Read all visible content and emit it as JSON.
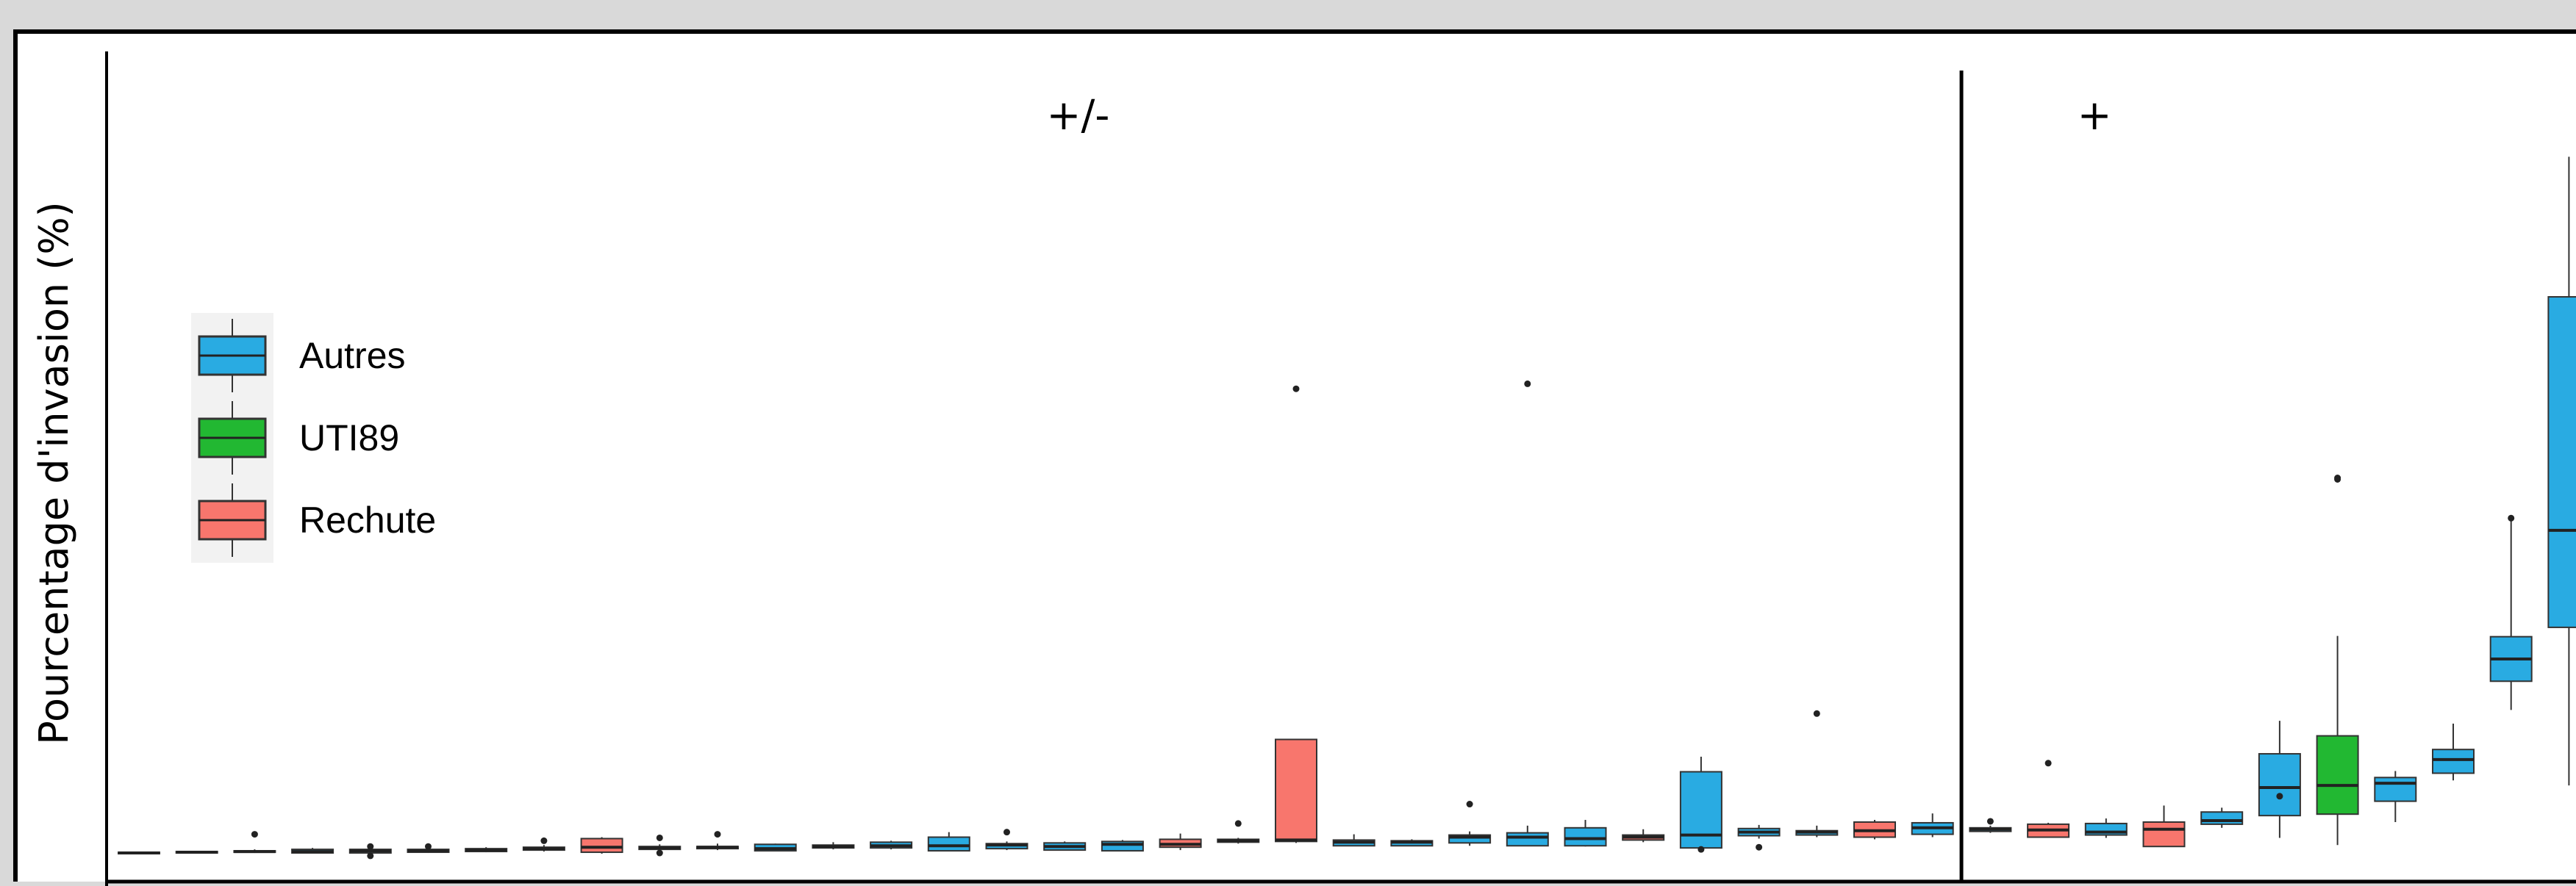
{
  "chart_data": {
    "type": "box",
    "title": "",
    "xlabel": "",
    "ylabel": "Pourcentage d'invasion (%)",
    "ylim": [
      0,
      100
    ],
    "grid": false,
    "legend_position": "top-left",
    "panels": [
      {
        "label": "+/-",
        "first": 0,
        "last": 31
      },
      {
        "label": "+",
        "first": 32,
        "last": 42
      }
    ],
    "legend": [
      {
        "name": "Autres",
        "color": "#29ABE2"
      },
      {
        "name": "UTI89",
        "color": "#22B832"
      },
      {
        "name": "Rechute",
        "color": "#F8766D"
      }
    ],
    "boxes": [
      {
        "group": "Autres",
        "min": 0.0,
        "q1": 0.0,
        "median": 0.1,
        "q3": 0.2,
        "max": 0.3,
        "outliers": []
      },
      {
        "group": "Autres",
        "min": 0.0,
        "q1": 0.1,
        "median": 0.2,
        "q3": 0.3,
        "max": 0.4,
        "outliers": []
      },
      {
        "group": "Autres",
        "min": 0.1,
        "q1": 0.2,
        "median": 0.3,
        "q3": 0.4,
        "max": 0.6,
        "outliers": [
          2.7
        ]
      },
      {
        "group": "Autres",
        "min": 0.1,
        "q1": 0.1,
        "median": 0.3,
        "q3": 0.6,
        "max": 0.8,
        "outliers": []
      },
      {
        "group": "Autres",
        "min": -0.1,
        "q1": 0.1,
        "median": 0.4,
        "q3": 0.6,
        "max": 0.9,
        "outliers": [
          1.0,
          -0.3
        ]
      },
      {
        "group": "Autres",
        "min": 0.1,
        "q1": 0.2,
        "median": 0.4,
        "q3": 0.6,
        "max": 0.9,
        "outliers": [
          1.0
        ]
      },
      {
        "group": "Autres",
        "min": 0.2,
        "q1": 0.3,
        "median": 0.5,
        "q3": 0.7,
        "max": 0.9,
        "outliers": []
      },
      {
        "group": "Autres",
        "min": 0.3,
        "q1": 0.5,
        "median": 0.7,
        "q3": 0.9,
        "max": 1.2,
        "outliers": [
          1.8
        ]
      },
      {
        "group": "Rechute",
        "min": 0.0,
        "q1": 0.2,
        "median": 0.9,
        "q3": 2.1,
        "max": 2.3,
        "outliers": []
      },
      {
        "group": "Autres",
        "min": 0.3,
        "q1": 0.6,
        "median": 0.8,
        "q3": 1.0,
        "max": 1.3,
        "outliers": [
          2.2,
          0.1
        ]
      },
      {
        "group": "Autres",
        "min": 0.5,
        "q1": 0.7,
        "median": 0.9,
        "q3": 1.0,
        "max": 1.4,
        "outliers": [
          2.7
        ]
      },
      {
        "group": "Autres",
        "min": 0.4,
        "q1": 0.4,
        "median": 0.7,
        "q3": 1.3,
        "max": 1.4,
        "outliers": []
      },
      {
        "group": "Autres",
        "min": 0.6,
        "q1": 0.8,
        "median": 1.0,
        "q3": 1.2,
        "max": 1.6,
        "outliers": []
      },
      {
        "group": "Autres",
        "min": 0.6,
        "q1": 0.8,
        "median": 1.1,
        "q3": 1.6,
        "max": 1.8,
        "outliers": []
      },
      {
        "group": "Autres",
        "min": 0.4,
        "q1": 0.4,
        "median": 1.1,
        "q3": 2.3,
        "max": 3.0,
        "outliers": []
      },
      {
        "group": "Autres",
        "min": 0.5,
        "q1": 0.7,
        "median": 1.2,
        "q3": 1.4,
        "max": 1.7,
        "outliers": [
          3.0
        ]
      },
      {
        "group": "Autres",
        "min": 0.5,
        "q1": 0.5,
        "median": 1.0,
        "q3": 1.5,
        "max": 1.7,
        "outliers": []
      },
      {
        "group": "Autres",
        "min": 0.4,
        "q1": 0.4,
        "median": 1.3,
        "q3": 1.7,
        "max": 1.9,
        "outliers": []
      },
      {
        "group": "Rechute",
        "min": 0.5,
        "q1": 0.9,
        "median": 1.3,
        "q3": 2.0,
        "max": 2.8,
        "outliers": []
      },
      {
        "group": "Autres",
        "min": 1.4,
        "q1": 1.6,
        "median": 1.8,
        "q3": 2.0,
        "max": 2.2,
        "outliers": [
          4.2
        ]
      },
      {
        "group": "Rechute",
        "min": 1.5,
        "q1": 1.7,
        "median": 1.9,
        "q3": 15.9,
        "max": 15.9,
        "outliers": [
          64.7
        ]
      },
      {
        "group": "Autres",
        "min": 1.1,
        "q1": 1.1,
        "median": 1.6,
        "q3": 1.9,
        "max": 2.7,
        "outliers": []
      },
      {
        "group": "Autres",
        "min": 1.1,
        "q1": 1.1,
        "median": 1.6,
        "q3": 1.8,
        "max": 2.0,
        "outliers": []
      },
      {
        "group": "Autres",
        "min": 1.1,
        "q1": 1.5,
        "median": 2.3,
        "q3": 2.6,
        "max": 3.1,
        "outliers": [
          6.9
        ]
      },
      {
        "group": "Autres",
        "min": 1.1,
        "q1": 1.1,
        "median": 2.3,
        "q3": 2.9,
        "max": 3.9,
        "outliers": [
          65.4
        ]
      },
      {
        "group": "Autres",
        "min": 1.0,
        "q1": 1.1,
        "median": 2.1,
        "q3": 3.6,
        "max": 4.7,
        "outliers": []
      },
      {
        "group": "Rechute",
        "min": 1.6,
        "q1": 1.9,
        "median": 2.3,
        "q3": 2.6,
        "max": 3.4,
        "outliers": []
      },
      {
        "group": "Autres",
        "min": 0.2,
        "q1": 0.8,
        "median": 2.6,
        "q3": 11.4,
        "max": 13.5,
        "outliers": [
          0.6
        ]
      },
      {
        "group": "Autres",
        "min": 2.1,
        "q1": 2.5,
        "median": 3.0,
        "q3": 3.5,
        "max": 4.0,
        "outliers": [
          0.9
        ]
      },
      {
        "group": "Autres",
        "min": 2.3,
        "q1": 2.6,
        "median": 3.0,
        "q3": 3.2,
        "max": 3.9,
        "outliers": [
          19.5
        ]
      },
      {
        "group": "Rechute",
        "min": 2.0,
        "q1": 2.3,
        "median": 3.2,
        "q3": 4.4,
        "max": 4.7,
        "outliers": []
      },
      {
        "group": "Autres",
        "min": 2.3,
        "q1": 2.7,
        "median": 3.6,
        "q3": 4.3,
        "max": 5.6,
        "outliers": []
      },
      {
        "group": "Autres",
        "min": 2.9,
        "q1": 3.1,
        "median": 3.4,
        "q3": 3.6,
        "max": 3.9,
        "outliers": [
          4.5
        ]
      },
      {
        "group": "Rechute",
        "min": 2.2,
        "q1": 2.3,
        "median": 3.3,
        "q3": 4.1,
        "max": 4.3,
        "outliers": [
          12.6
        ]
      },
      {
        "group": "Autres",
        "min": 2.2,
        "q1": 2.6,
        "median": 3.0,
        "q3": 4.2,
        "max": 4.9,
        "outliers": []
      },
      {
        "group": "Rechute",
        "min": 1.0,
        "q1": 1.0,
        "median": 3.4,
        "q3": 4.4,
        "max": 6.7,
        "outliers": []
      },
      {
        "group": "Autres",
        "min": 3.6,
        "q1": 4.1,
        "median": 4.6,
        "q3": 5.8,
        "max": 6.4,
        "outliers": []
      },
      {
        "group": "Autres",
        "min": 2.2,
        "q1": 5.3,
        "median": 9.2,
        "q3": 13.9,
        "max": 18.5,
        "outliers": [
          8.0
        ]
      },
      {
        "group": "UTI89",
        "min": 1.2,
        "q1": 5.5,
        "median": 9.5,
        "q3": 16.4,
        "max": 30.3,
        "outliers": [
          52.1,
          52.3
        ]
      },
      {
        "group": "Autres",
        "min": 4.4,
        "q1": 7.3,
        "median": 9.8,
        "q3": 10.6,
        "max": 11.5,
        "outliers": []
      },
      {
        "group": "Autres",
        "min": 10.2,
        "q1": 11.2,
        "median": 13.1,
        "q3": 14.5,
        "max": 18.1,
        "outliers": []
      },
      {
        "group": "Autres",
        "min": 20.0,
        "q1": 24.0,
        "median": 27.1,
        "q3": 30.2,
        "max": 46.7,
        "outliers": [
          46.7
        ]
      },
      {
        "group": "Autres",
        "min": 9.5,
        "q1": 31.5,
        "median": 45.0,
        "q3": 77.5,
        "max": 97.0,
        "outliers": []
      }
    ]
  }
}
